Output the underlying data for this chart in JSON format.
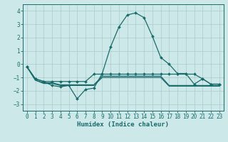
{
  "xlabel": "Humidex (Indice chaleur)",
  "bg_color": "#cce8e8",
  "grid_color": "#aacccc",
  "line_color": "#1a6b6b",
  "xlim": [
    -0.5,
    23.5
  ],
  "ylim": [
    -3.5,
    4.5
  ],
  "xticks": [
    0,
    1,
    2,
    3,
    4,
    5,
    6,
    7,
    8,
    9,
    10,
    11,
    12,
    13,
    14,
    15,
    16,
    17,
    18,
    19,
    20,
    21,
    22,
    23
  ],
  "yticks": [
    -3,
    -2,
    -1,
    0,
    1,
    2,
    3,
    4
  ],
  "series1_x": [
    0,
    1,
    2,
    3,
    4,
    5,
    6,
    7,
    8,
    9,
    10,
    11,
    12,
    13,
    14,
    15,
    16,
    17,
    18,
    19,
    20,
    21,
    22,
    23
  ],
  "series1_y": [
    -0.2,
    -1.1,
    -1.3,
    -1.6,
    -1.7,
    -1.6,
    -2.6,
    -1.9,
    -1.8,
    -0.7,
    1.3,
    2.8,
    3.7,
    3.85,
    3.5,
    2.1,
    0.5,
    0.0,
    -0.7,
    -0.7,
    -1.5,
    -1.1,
    -1.5,
    -1.5
  ],
  "series2_x": [
    0,
    1,
    2,
    3,
    4,
    5,
    6,
    7,
    8,
    9,
    10,
    11,
    12,
    13,
    14,
    15,
    16,
    17,
    18,
    19,
    20,
    21,
    22,
    23
  ],
  "series2_y": [
    -0.2,
    -1.1,
    -1.3,
    -1.3,
    -1.3,
    -1.3,
    -1.3,
    -1.3,
    -0.75,
    -0.75,
    -0.75,
    -0.75,
    -0.75,
    -0.75,
    -0.75,
    -0.75,
    -0.75,
    -0.75,
    -0.75,
    -0.75,
    -0.75,
    -1.1,
    -1.5,
    -1.5
  ],
  "series3_x": [
    0,
    1,
    2,
    3,
    4,
    5,
    6,
    7,
    8,
    9,
    10,
    11,
    12,
    13,
    14,
    15,
    16,
    17,
    18,
    19,
    20,
    21,
    22,
    23
  ],
  "series3_y": [
    -0.2,
    -1.2,
    -1.4,
    -1.4,
    -1.55,
    -1.55,
    -1.55,
    -1.55,
    -1.55,
    -0.9,
    -0.9,
    -0.9,
    -0.9,
    -0.9,
    -0.9,
    -0.9,
    -0.9,
    -1.6,
    -1.6,
    -1.6,
    -1.6,
    -1.6,
    -1.6,
    -1.6
  ],
  "series4_x": [
    0,
    1,
    2,
    3,
    4,
    5,
    6,
    7,
    8,
    9,
    10,
    11,
    12,
    13,
    14,
    15,
    16,
    17,
    18,
    19,
    20,
    21,
    22,
    23
  ],
  "series4_y": [
    -0.2,
    -1.2,
    -1.45,
    -1.45,
    -1.6,
    -1.6,
    -1.6,
    -1.6,
    -1.6,
    -1.0,
    -1.0,
    -1.0,
    -1.0,
    -1.0,
    -1.0,
    -1.0,
    -1.0,
    -1.65,
    -1.65,
    -1.65,
    -1.65,
    -1.65,
    -1.65,
    -1.65
  ],
  "tick_fontsize": 5.5,
  "xlabel_fontsize": 6.5
}
